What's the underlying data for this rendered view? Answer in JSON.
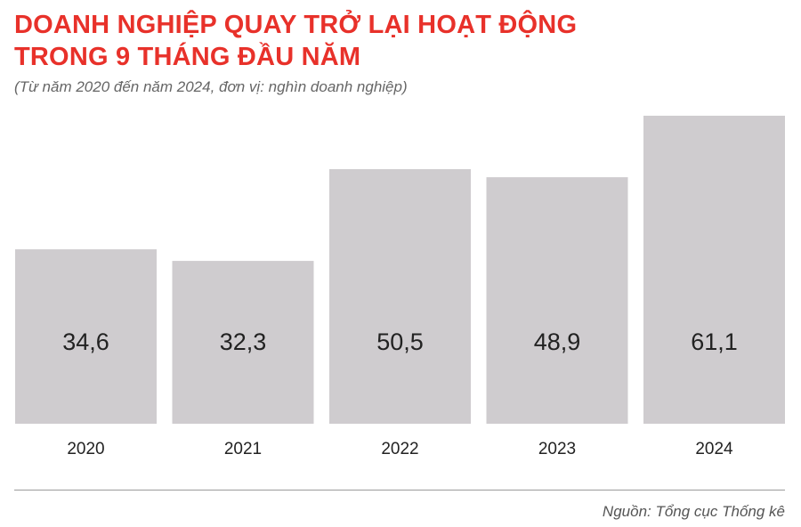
{
  "header": {
    "title_line1": "DOANH NGHIỆP QUAY TRỞ LẠI HOẠT ĐỘNG",
    "title_line2": "TRONG 9 THÁNG ĐẦU NĂM",
    "subtitle": "(Từ năm 2020 đến năm 2024, đơn vị: nghìn doanh nghiệp)"
  },
  "footer": {
    "source": "Nguồn: Tổng cục Thống kê"
  },
  "colors": {
    "title": "#e8312a",
    "bar": "#cfcccf",
    "text": "#222222"
  },
  "chart_data": {
    "type": "bar",
    "categories": [
      "2020",
      "2021",
      "2022",
      "2023",
      "2024"
    ],
    "values": [
      34.6,
      32.3,
      50.5,
      48.9,
      61.1
    ],
    "value_labels": [
      "34,6",
      "32,3",
      "50,5",
      "48,9",
      "61,1"
    ],
    "title": "DOANH NGHIỆP QUAY TRỞ LẠI HOẠT ĐỘNG TRONG 9 THÁNG ĐẦU NĂM",
    "subtitle": "(Từ năm 2020 đến năm 2024, đơn vị: nghìn doanh nghiệp)",
    "xlabel": "",
    "ylabel": "",
    "ylim": [
      0,
      61.1
    ],
    "grid": false,
    "legend": "none"
  }
}
